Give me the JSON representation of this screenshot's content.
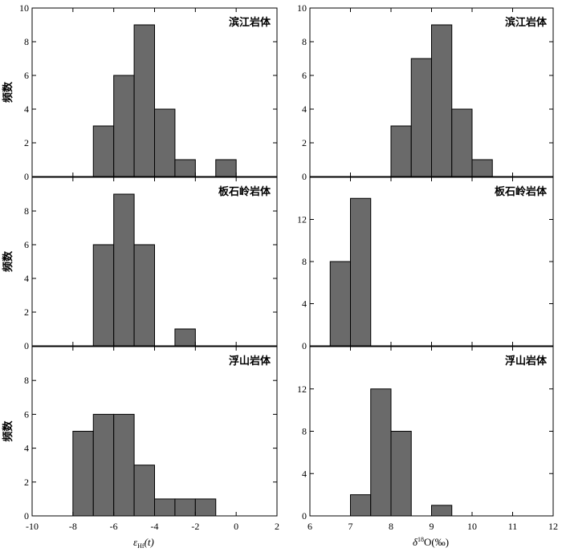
{
  "chart_data": [
    {
      "type": "bar",
      "title": "滨江岩体",
      "ylabel": "频数",
      "xlabel": "",
      "xlim": [
        -10,
        2
      ],
      "ylim": [
        0,
        10
      ],
      "yticks": [
        0,
        2,
        4,
        6,
        8,
        10
      ],
      "xticks": [
        -10,
        -8,
        -6,
        -4,
        -2,
        0,
        2
      ],
      "bins": [
        {
          "x0": -7,
          "x1": -6,
          "value": 3
        },
        {
          "x0": -6,
          "x1": -5,
          "value": 6
        },
        {
          "x0": -5,
          "x1": -4,
          "value": 9
        },
        {
          "x0": -4,
          "x1": -3,
          "value": 4
        },
        {
          "x0": -3,
          "x1": -2,
          "value": 1
        },
        {
          "x0": -1,
          "x1": 0,
          "value": 1
        }
      ]
    },
    {
      "type": "bar",
      "title": "滨江岩体",
      "ylabel": "",
      "xlabel": "",
      "xlim": [
        6,
        12
      ],
      "ylim": [
        0,
        10
      ],
      "yticks": [
        0,
        2,
        4,
        6,
        8,
        10
      ],
      "xticks": [
        6,
        7,
        8,
        9,
        10,
        11,
        12
      ],
      "bins": [
        {
          "x0": 8,
          "x1": 8.5,
          "value": 3
        },
        {
          "x0": 8.5,
          "x1": 9,
          "value": 7
        },
        {
          "x0": 9,
          "x1": 9.5,
          "value": 9
        },
        {
          "x0": 9.5,
          "x1": 10,
          "value": 4
        },
        {
          "x0": 10,
          "x1": 10.5,
          "value": 1
        }
      ]
    },
    {
      "type": "bar",
      "title": "板石岭岩体",
      "ylabel": "频数",
      "xlabel": "",
      "xlim": [
        -10,
        2
      ],
      "ylim": [
        0,
        10
      ],
      "yticks": [
        0,
        2,
        4,
        6,
        8
      ],
      "xticks": [
        -10,
        -8,
        -6,
        -4,
        -2,
        0,
        2
      ],
      "bins": [
        {
          "x0": -7,
          "x1": -6,
          "value": 6
        },
        {
          "x0": -6,
          "x1": -5,
          "value": 9
        },
        {
          "x0": -5,
          "x1": -4,
          "value": 6
        },
        {
          "x0": -3,
          "x1": -2,
          "value": 1
        }
      ]
    },
    {
      "type": "bar",
      "title": "板石岭岩体",
      "ylabel": "",
      "xlabel": "",
      "xlim": [
        6,
        12
      ],
      "ylim": [
        0,
        16
      ],
      "yticks": [
        0,
        4,
        8,
        12
      ],
      "xticks": [
        6,
        7,
        8,
        9,
        10,
        11,
        12
      ],
      "bins": [
        {
          "x0": 6.5,
          "x1": 7,
          "value": 8
        },
        {
          "x0": 7,
          "x1": 7.5,
          "value": 14
        }
      ]
    },
    {
      "type": "bar",
      "title": "浮山岩体",
      "ylabel": "频数",
      "xlabel": "εHf(t)",
      "xlim": [
        -10,
        2
      ],
      "ylim": [
        0,
        10
      ],
      "yticks": [
        0,
        2,
        4,
        6,
        8
      ],
      "xticks": [
        -10,
        -8,
        -6,
        -4,
        -2,
        0,
        2
      ],
      "bins": [
        {
          "x0": -8,
          "x1": -7,
          "value": 5
        },
        {
          "x0": -7,
          "x1": -6,
          "value": 6
        },
        {
          "x0": -6,
          "x1": -5,
          "value": 6
        },
        {
          "x0": -5,
          "x1": -4,
          "value": 3
        },
        {
          "x0": -4,
          "x1": -3,
          "value": 1
        },
        {
          "x0": -3,
          "x1": -2,
          "value": 1
        },
        {
          "x0": -2,
          "x1": -1,
          "value": 1
        }
      ]
    },
    {
      "type": "bar",
      "title": "浮山岩体",
      "ylabel": "",
      "xlabel": "δ18O(‰)",
      "xlim": [
        6,
        12
      ],
      "ylim": [
        0,
        16
      ],
      "yticks": [
        0,
        4,
        8,
        12
      ],
      "xticks": [
        6,
        7,
        8,
        9,
        10,
        11,
        12
      ],
      "bins": [
        {
          "x0": 7,
          "x1": 7.5,
          "value": 2
        },
        {
          "x0": 7.5,
          "x1": 8,
          "value": 12
        },
        {
          "x0": 8,
          "x1": 8.5,
          "value": 8
        },
        {
          "x0": 9,
          "x1": 9.5,
          "value": 1
        }
      ]
    }
  ],
  "xlabels": {
    "left_symbol": "ε",
    "left_sub": "Hf",
    "left_rest": "(t)",
    "right_symbol": "δ",
    "right_sup": "18",
    "right_rest": "O(‰)"
  }
}
